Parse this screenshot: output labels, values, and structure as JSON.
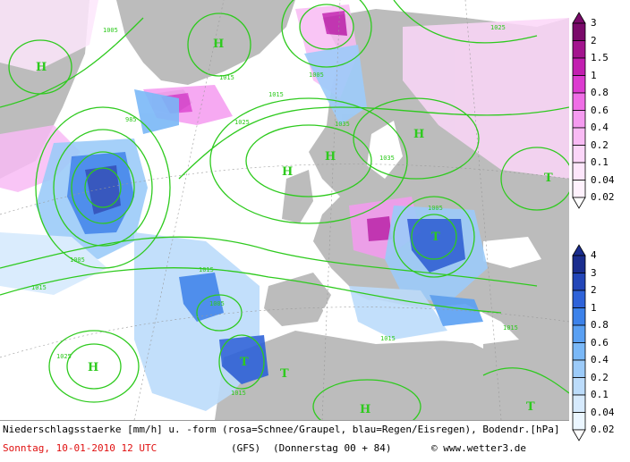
{
  "caption": {
    "line1": "Niederschlagsstaerke [mm/h] u. -form (rosa=Schnee/Graupel, blau=Regen/Eisregen), Bodendr.[hPa]",
    "date": "Sonntag, 10-01-2010  12 UTC",
    "model": "(GFS)",
    "forecast": "(Donnerstag 00 + 84)",
    "copyright": "© www.wetter3.de",
    "date_color": "#e01010"
  },
  "legend_snow": {
    "labels": [
      "3",
      "2",
      "1.5",
      "1",
      "0.8",
      "0.6",
      "0.4",
      "0.2",
      "0.1",
      "0.04",
      "0.02"
    ],
    "colors": [
      "#7a0a6a",
      "#a3148e",
      "#c21fb0",
      "#dc3bd0",
      "#ef6ee6",
      "#f59bf0",
      "#f8bbf4",
      "#fbd6f8",
      "#fde6fb",
      "#fff2fd"
    ]
  },
  "legend_rain": {
    "labels": [
      "4",
      "3",
      "2",
      "1",
      "0.8",
      "0.6",
      "0.4",
      "0.2",
      "0.1",
      "0.04",
      "0.02"
    ],
    "colors": [
      "#1a2d8e",
      "#2346b8",
      "#2f63d9",
      "#3c82ea",
      "#5aa0f3",
      "#7ab8f7",
      "#9ccbf9",
      "#bcdcfb",
      "#d6eafd",
      "#ebf6ff"
    ]
  },
  "pressure_labels": [
    {
      "text": "H",
      "kind": "high"
    },
    {
      "text": "H",
      "kind": "high"
    },
    {
      "text": "H",
      "kind": "high"
    },
    {
      "text": "H",
      "kind": "high"
    },
    {
      "text": "H",
      "kind": "high"
    },
    {
      "text": "H",
      "kind": "high"
    },
    {
      "text": "H",
      "kind": "high"
    },
    {
      "text": "T",
      "kind": "low"
    },
    {
      "text": "T",
      "kind": "low"
    },
    {
      "text": "T",
      "kind": "low"
    },
    {
      "text": "T",
      "kind": "low"
    },
    {
      "text": "T",
      "kind": "low"
    }
  ],
  "isobar_labels": [
    "1005",
    "1005",
    "1015",
    "1025",
    "1025",
    "1015",
    "1035",
    "1005",
    "1015",
    "1015",
    "1005",
    "1015",
    "1015",
    "1025",
    "1015",
    "1005",
    "1035",
    "985"
  ],
  "colors": {
    "isobar": "#2eca1e",
    "land": "#bcbcbc",
    "sea": "#ffffff"
  }
}
